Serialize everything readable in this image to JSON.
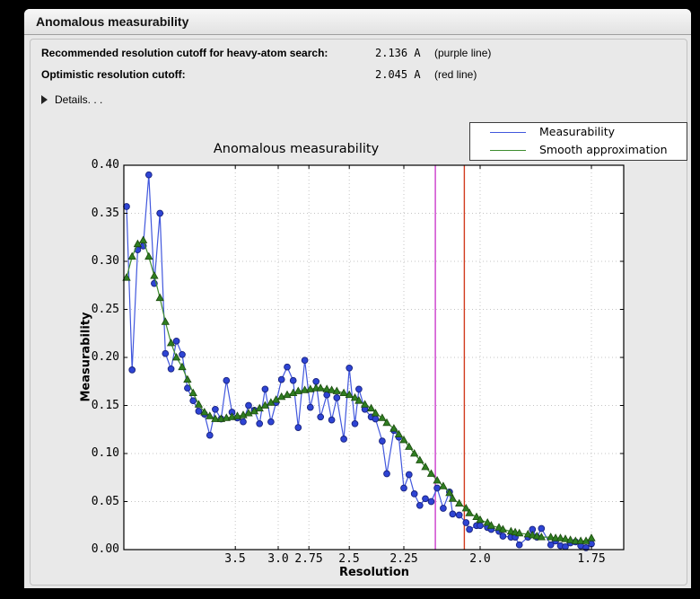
{
  "window": {
    "title": "Anomalous measurability"
  },
  "summary": {
    "rows": [
      {
        "label": "Recommended resolution cutoff for heavy-atom search:",
        "value": "2.136 A",
        "note": "(purple line)"
      },
      {
        "label": "Optimistic resolution cutoff:",
        "value": "2.045 A",
        "note": "(red line)"
      }
    ],
    "details_label": "Details. . ."
  },
  "chart_data": {
    "type": "line",
    "title": "Anomalous measurability",
    "xlabel": "Resolution",
    "ylabel": "Measurability",
    "grid": true,
    "legend_position": "top-right",
    "x_axis_scale": "linear in 1/d^2 (resolution, Angstrom, decreasing d to the right)",
    "x_ticks": [
      3.5,
      3.0,
      2.75,
      2.5,
      2.25,
      2.0,
      1.75
    ],
    "x_tick_labels": [
      "3.5",
      "3.0",
      "2.75",
      "2.5",
      "2.25",
      "2.0",
      "1.75"
    ],
    "x_range_A": [
      14.2,
      1.69
    ],
    "ylim": [
      0.0,
      0.4
    ],
    "y_ticks": [
      0.0,
      0.05,
      0.1,
      0.15,
      0.2,
      0.25,
      0.3,
      0.35,
      0.4
    ],
    "y_tick_labels": [
      "0.00",
      "0.05",
      "0.10",
      "0.15",
      "0.20",
      "0.25",
      "0.30",
      "0.35",
      "0.40"
    ],
    "resolution_A": [
      12.13,
      9.71,
      8.32,
      7.4,
      6.73,
      6.22,
      5.8,
      5.46,
      5.17,
      4.93,
      4.71,
      4.53,
      4.36,
      4.21,
      4.07,
      3.95,
      3.84,
      3.73,
      3.64,
      3.55,
      3.47,
      3.39,
      3.32,
      3.25,
      3.19,
      3.13,
      3.07,
      3.02,
      2.97,
      2.92,
      2.87,
      2.83,
      2.78,
      2.74,
      2.7,
      2.67,
      2.63,
      2.6,
      2.57,
      2.53,
      2.5,
      2.47,
      2.45,
      2.42,
      2.39,
      2.37,
      2.34,
      2.32,
      2.29,
      2.27,
      2.25,
      2.23,
      2.21,
      2.19,
      2.17,
      2.15,
      2.13,
      2.11,
      2.09,
      2.08,
      2.06,
      2.04,
      2.03,
      2.01,
      2.0,
      1.98,
      1.97,
      1.95,
      1.94,
      1.92,
      1.91,
      1.9,
      1.88,
      1.87,
      1.86,
      1.85,
      1.83,
      1.82,
      1.81,
      1.8,
      1.79,
      1.78,
      1.77,
      1.76,
      1.75
    ],
    "series": [
      {
        "name": "Measurability",
        "marker": "circle",
        "line_color": "#4157dd",
        "marker_fill": "#2e44d4",
        "marker_edge": "#18227e",
        "values": [
          0.357,
          0.187,
          0.312,
          0.316,
          0.39,
          0.277,
          0.35,
          0.204,
          0.188,
          0.217,
          0.203,
          0.168,
          0.155,
          0.144,
          0.141,
          0.119,
          0.146,
          0.136,
          0.176,
          0.143,
          0.137,
          0.133,
          0.15,
          0.145,
          0.131,
          0.167,
          0.133,
          0.153,
          0.177,
          0.19,
          0.176,
          0.127,
          0.197,
          0.148,
          0.175,
          0.138,
          0.161,
          0.135,
          0.158,
          0.115,
          0.189,
          0.131,
          0.167,
          0.146,
          0.138,
          0.136,
          0.113,
          0.079,
          0.124,
          0.117,
          0.064,
          0.078,
          0.058,
          0.046,
          0.053,
          0.05,
          0.064,
          0.043,
          0.06,
          0.037,
          0.036,
          0.028,
          0.021,
          0.025,
          0.025,
          0.023,
          0.021,
          0.019,
          0.014,
          0.013,
          0.013,
          0.005,
          0.013,
          0.021,
          0.013,
          0.022,
          0.005,
          0.009,
          0.004,
          0.003,
          0.007,
          0.008,
          0.004,
          0.002,
          0.006
        ]
      },
      {
        "name": "Smooth approximation",
        "marker": "triangle",
        "line_color": "#3e8c2f",
        "marker_fill": "#2f7d20",
        "marker_edge": "#1c4b10",
        "values": [
          0.283,
          0.305,
          0.318,
          0.322,
          0.305,
          0.285,
          0.262,
          0.237,
          0.215,
          0.2,
          0.19,
          0.177,
          0.163,
          0.151,
          0.143,
          0.139,
          0.136,
          0.136,
          0.137,
          0.138,
          0.139,
          0.14,
          0.142,
          0.144,
          0.147,
          0.15,
          0.153,
          0.156,
          0.159,
          0.161,
          0.163,
          0.165,
          0.166,
          0.167,
          0.168,
          0.168,
          0.167,
          0.166,
          0.165,
          0.163,
          0.161,
          0.158,
          0.155,
          0.151,
          0.147,
          0.142,
          0.137,
          0.132,
          0.126,
          0.12,
          0.114,
          0.107,
          0.1,
          0.093,
          0.086,
          0.079,
          0.072,
          0.066,
          0.059,
          0.053,
          0.048,
          0.043,
          0.038,
          0.034,
          0.031,
          0.028,
          0.025,
          0.023,
          0.021,
          0.019,
          0.018,
          0.017,
          0.016,
          0.015,
          0.014,
          0.013,
          0.013,
          0.012,
          0.012,
          0.011,
          0.01,
          0.009,
          0.009,
          0.009,
          0.012
        ]
      }
    ],
    "vlines": [
      {
        "name": "purple line",
        "resolution_A": 2.136,
        "color": "#cb3ccb"
      },
      {
        "name": "red line",
        "resolution_A": 2.045,
        "color": "#d23b1e"
      }
    ],
    "colors": {
      "grid": "#c4c4c4",
      "frame": "#000000",
      "axes_bg": "#ffffff"
    }
  }
}
